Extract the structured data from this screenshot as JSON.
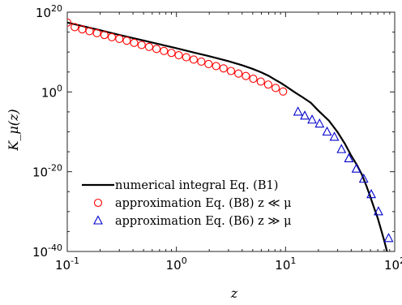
{
  "chart_data": {
    "type": "line",
    "xlabel": "z",
    "ylabel": "K_μ(z)",
    "x_scale": "log",
    "y_scale": "log",
    "xlim": [
      0.1,
      100
    ],
    "ylim": [
      1e-40,
      1e+20
    ],
    "x_ticks": [
      {
        "base": "10",
        "exp": "-1",
        "value": 0.1
      },
      {
        "base": "10",
        "exp": "0",
        "value": 1
      },
      {
        "base": "10",
        "exp": "1",
        "value": 10
      },
      {
        "base": "10",
        "exp": "2",
        "value": 100
      }
    ],
    "y_ticks": [
      {
        "base": "10",
        "exp": "-40",
        "value": 1e-40
      },
      {
        "base": "10",
        "exp": "-20",
        "value": 1e-20
      },
      {
        "base": "10",
        "exp": "0",
        "value": 1
      },
      {
        "base": "10",
        "exp": "20",
        "value": 1e+20
      }
    ],
    "grid": false,
    "legend_position": "bottom-left",
    "series": [
      {
        "name": "numerical integral Eq. (B1)",
        "marker": "line",
        "color": "#000000",
        "points": [
          [
            0.1,
            2.5e+17
          ],
          [
            0.2,
            3000000000000000.0
          ],
          [
            0.3,
            200000000000000.0
          ],
          [
            0.5,
            8000000000000.0
          ],
          [
            0.7,
            900000000000.0
          ],
          [
            1.0,
            90000000000.0
          ],
          [
            1.5,
            6000000000.0
          ],
          [
            2.0,
            900000000.0
          ],
          [
            3.0,
            50000000.0
          ],
          [
            4.0,
            5000000.0
          ],
          [
            5.0,
            600000.0
          ],
          [
            6.0,
            80000.0
          ],
          [
            7.0,
            11000.0
          ],
          [
            8.0,
            1200.0
          ],
          [
            9.0,
            200
          ],
          [
            10.0,
            30
          ],
          [
            12.0,
            1
          ],
          [
            14.0,
            0.07
          ],
          [
            17.0,
            0.002
          ],
          [
            20.0,
            2e-05
          ],
          [
            25.0,
            6e-08
          ],
          [
            30.0,
            8e-11
          ],
          [
            35.0,
            1e-13
          ],
          [
            40.0,
            1e-16
          ],
          [
            45.0,
            5e-19
          ],
          [
            50.0,
            2e-21
          ],
          [
            55.0,
            3e-24
          ],
          [
            60.0,
            4e-27
          ],
          [
            65.0,
            6e-30
          ],
          [
            70.0,
            2e-32
          ],
          [
            75.0,
            3e-35
          ],
          [
            80.0,
            6e-38
          ],
          [
            85.0,
            1e-40
          ]
        ]
      },
      {
        "name": "approximation Eq. (B8) z ≪ μ",
        "marker": "circle",
        "color": "#ff0000",
        "points": [
          [
            0.1,
            2.5e+17
          ],
          [
            0.117,
            1.8e+16
          ],
          [
            0.137,
            5000000000000000.0
          ],
          [
            0.16,
            1700000000000000.0
          ],
          [
            0.187,
            550000000000000.0
          ],
          [
            0.219,
            190000000000000.0
          ],
          [
            0.256,
            55000000000000.0
          ],
          [
            0.3,
            20000000000000.0
          ],
          [
            0.351,
            7000000000000.0
          ],
          [
            0.41,
            2000000000000.0
          ],
          [
            0.48,
            600000000000.0
          ],
          [
            0.562,
            200000000000.0
          ],
          [
            0.657,
            60000000000.0
          ],
          [
            0.769,
            19000000000.0
          ],
          [
            0.9,
            6000000000.0
          ],
          [
            1.05,
            1600000000.0
          ],
          [
            1.23,
            500000000.0
          ],
          [
            1.44,
            130000000.0
          ],
          [
            1.69,
            40000000.0
          ],
          [
            1.97,
            10000000.0
          ],
          [
            2.31,
            3000000.0
          ],
          [
            2.7,
            800000.0
          ],
          [
            3.16,
            180000.0
          ],
          [
            3.7,
            40000.0
          ],
          [
            4.33,
            10000.0
          ],
          [
            5.06,
            2000.0
          ],
          [
            5.93,
            400
          ],
          [
            6.93,
            70
          ],
          [
            8.11,
            10
          ],
          [
            9.49,
            1.3
          ]
        ]
      },
      {
        "name": "approximation Eq. (B6) z ≫ μ",
        "marker": "triangle",
        "color": "#0000cc",
        "points": [
          [
            13.0,
            1e-05
          ],
          [
            15.0,
            1e-06
          ],
          [
            17.5,
            1e-07
          ],
          [
            20.5,
            1e-08
          ],
          [
            24.0,
            1e-10
          ],
          [
            28.0,
            5e-12
          ],
          [
            32.5,
            4e-15
          ],
          [
            38.0,
            2e-17
          ],
          [
            44.5,
            5e-20
          ],
          [
            52.0,
            1.5e-22
          ],
          [
            61.0,
            2e-26
          ],
          [
            71.0,
            1e-30
          ],
          [
            88.0,
            2e-37
          ]
        ]
      }
    ]
  }
}
